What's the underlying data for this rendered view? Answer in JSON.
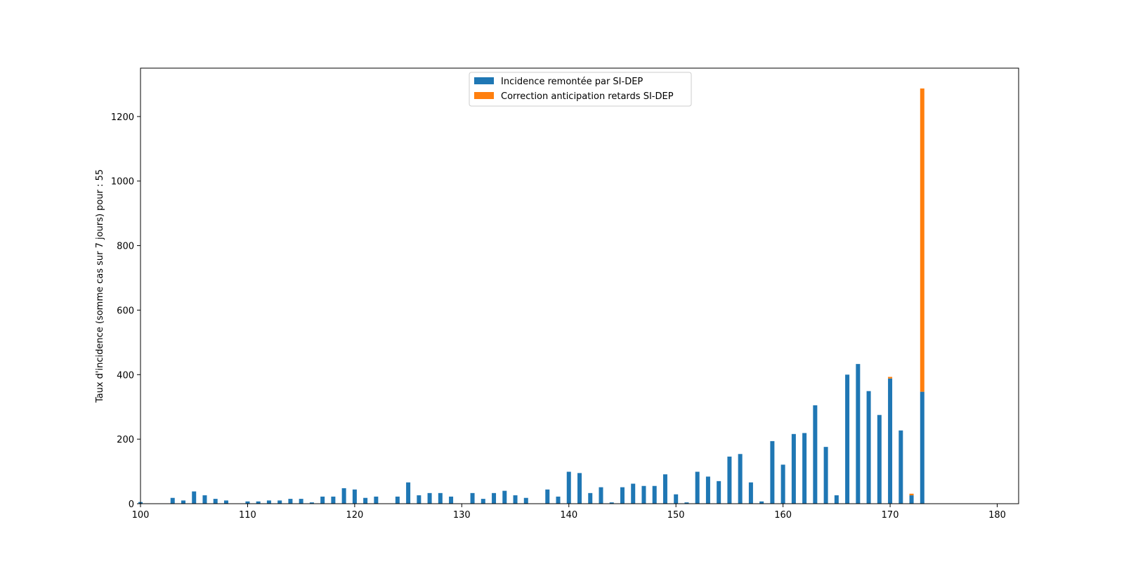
{
  "chart_data": {
    "type": "bar",
    "stacked": true,
    "title": "",
    "xlabel": "",
    "ylabel": "Taux d'incidence (somme cas sur 7 jours) pour : 55",
    "xlim": [
      100,
      182
    ],
    "ylim": [
      0,
      1350
    ],
    "xticks": [
      100,
      110,
      120,
      130,
      140,
      150,
      160,
      170,
      180
    ],
    "yticks": [
      0,
      200,
      400,
      600,
      800,
      1000,
      1200
    ],
    "grid": false,
    "legend_position": "upper center",
    "x": [
      100,
      103,
      104,
      105,
      106,
      107,
      108,
      110,
      111,
      112,
      113,
      114,
      115,
      116,
      117,
      118,
      119,
      120,
      121,
      122,
      124,
      125,
      126,
      127,
      128,
      129,
      131,
      132,
      133,
      134,
      135,
      136,
      138,
      139,
      140,
      141,
      142,
      143,
      144,
      145,
      146,
      147,
      148,
      149,
      150,
      151,
      152,
      153,
      154,
      155,
      156,
      157,
      158,
      159,
      160,
      161,
      162,
      163,
      164,
      165,
      166,
      167,
      168,
      169,
      170,
      171,
      172,
      173
    ],
    "series": [
      {
        "name": "Incidence remontée par SI-DEP",
        "color": "#1f77b4",
        "values": [
          5,
          18,
          10,
          38,
          26,
          15,
          10,
          7,
          7,
          10,
          10,
          15,
          15,
          4,
          22,
          22,
          48,
          44,
          18,
          22,
          22,
          66,
          26,
          33,
          33,
          22,
          33,
          15,
          33,
          40,
          26,
          18,
          44,
          22,
          99,
          95,
          33,
          51,
          4,
          51,
          62,
          55,
          55,
          91,
          29,
          4,
          99,
          84,
          70,
          146,
          154,
          66,
          7,
          194,
          121,
          216,
          219,
          305,
          176,
          26,
          400,
          433,
          349,
          275,
          388,
          227,
          26,
          347
        ]
      },
      {
        "name": "Correction anticipation retards SI-DEP",
        "color": "#ff7f0e",
        "values": [
          0,
          0,
          0,
          0,
          0,
          0,
          0,
          0,
          0,
          0,
          0,
          0,
          0,
          0,
          0,
          0,
          0,
          0,
          0,
          0,
          0,
          0,
          0,
          0,
          0,
          0,
          0,
          0,
          0,
          0,
          0,
          0,
          0,
          0,
          0,
          0,
          0,
          0,
          0,
          0,
          0,
          0,
          0,
          0,
          0,
          0,
          0,
          0,
          0,
          0,
          0,
          0,
          0,
          0,
          0,
          0,
          0,
          0,
          0,
          0,
          0,
          0,
          0,
          0,
          5,
          0,
          5,
          940
        ]
      }
    ]
  }
}
